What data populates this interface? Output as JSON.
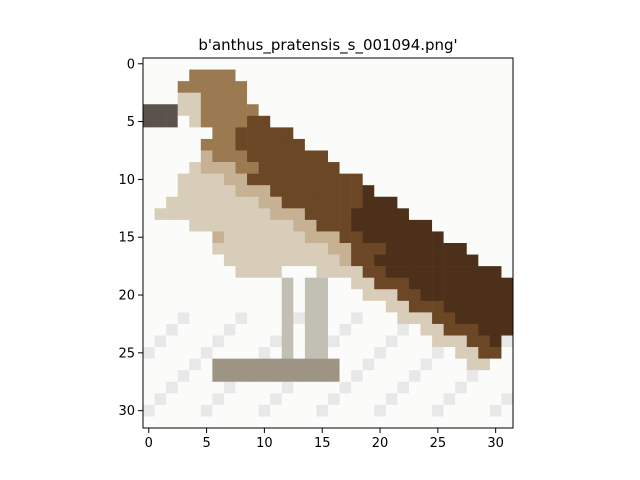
{
  "chart_data": {
    "type": "heatmap",
    "title": "b'anthus_pratensis_s_001094.png'",
    "xlabel": "",
    "ylabel": "",
    "xlim": [
      -0.5,
      31.5
    ],
    "ylim": [
      31.5,
      -0.5
    ],
    "x_ticks": [
      0,
      5,
      10,
      15,
      20,
      25,
      30
    ],
    "y_ticks": [
      0,
      5,
      10,
      15,
      20,
      25,
      30
    ],
    "grid": false,
    "image_size": [
      32,
      32
    ],
    "bird_palette": {
      "background": "#fbfbfa",
      "light_ground": "#e9e8e8",
      "throat_cream": "#d8cdb8",
      "breast_tan": "#c6b193",
      "head_brown": "#9b7a52",
      "wing_brown": "#6b4726",
      "wing_dark": "#4c3019",
      "beak_dark": "#5a534b",
      "legs_grey": "#c2bfb5",
      "feet_grey": "#9d9484"
    }
  }
}
